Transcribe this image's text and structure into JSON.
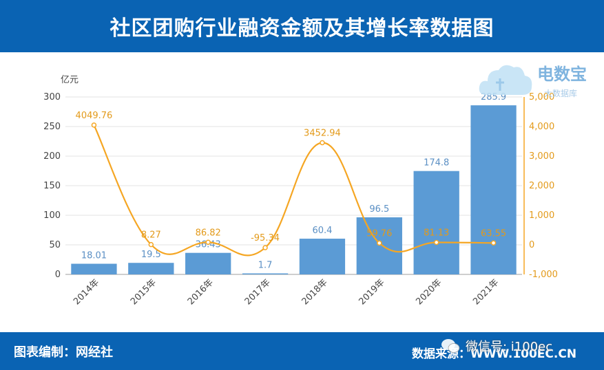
{
  "header": {
    "title": "社区团购行业融资金额及其增长率数据图"
  },
  "footer": {
    "left": "图表编制：网经社",
    "right": "数据来源：WWW.100EC.CN",
    "wechat": "微信号: i100ec"
  },
  "logo": {
    "name": "电数宝",
    "tagline": "大数据库",
    "mark": "ebrun-cloud-icon"
  },
  "colors": {
    "bar": "#5b9bd5",
    "line": "#f5a623",
    "header": "#0a63b3"
  },
  "chart_data": {
    "type": "bar",
    "categories": [
      "2014年",
      "2015年",
      "2016年",
      "2017年",
      "2018年",
      "2019年",
      "2020年",
      "2021年"
    ],
    "ylabel": "亿元",
    "ylim": [
      0,
      300
    ],
    "yticks": [
      "0",
      "50",
      "100",
      "150",
      "200",
      "250",
      "300"
    ],
    "y2lim": [
      -1000,
      5000
    ],
    "y2ticks": [
      "-1,000",
      "0",
      "1,000",
      "2,000",
      "3,000",
      "4,000",
      "5,000"
    ],
    "series": [
      {
        "type": "bar",
        "values": [
          18.01,
          19.5,
          36.43,
          1.7,
          60.4,
          96.5,
          174.8,
          285.9
        ],
        "labels": [
          "18.01",
          "19.5",
          "36.43",
          "1.7",
          "60.4",
          "96.5",
          "174.8",
          "285.9"
        ]
      },
      {
        "type": "line",
        "axis": "right",
        "values": [
          4049.76,
          8.27,
          86.82,
          -95.34,
          3452.94,
          59.76,
          81.13,
          63.55
        ],
        "labels": [
          "4049.76",
          "8.27",
          "86.82",
          "-95.34",
          "3452.94",
          "59.76",
          "81.13",
          "63.55"
        ]
      }
    ],
    "grid": true
  }
}
